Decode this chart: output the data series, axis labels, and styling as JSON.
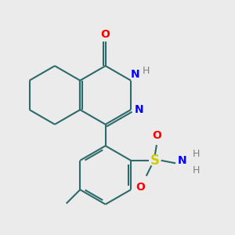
{
  "bg_color": "#ebebeb",
  "bond_color": "#2d6b6b",
  "atom_colors": {
    "O": "#ff0000",
    "N": "#0000ff",
    "H": "#808080",
    "S": "#cccc00",
    "C": "#2d6b6b"
  },
  "line_width": 1.5,
  "fig_size": [
    3.0,
    3.0
  ],
  "dpi": 100
}
